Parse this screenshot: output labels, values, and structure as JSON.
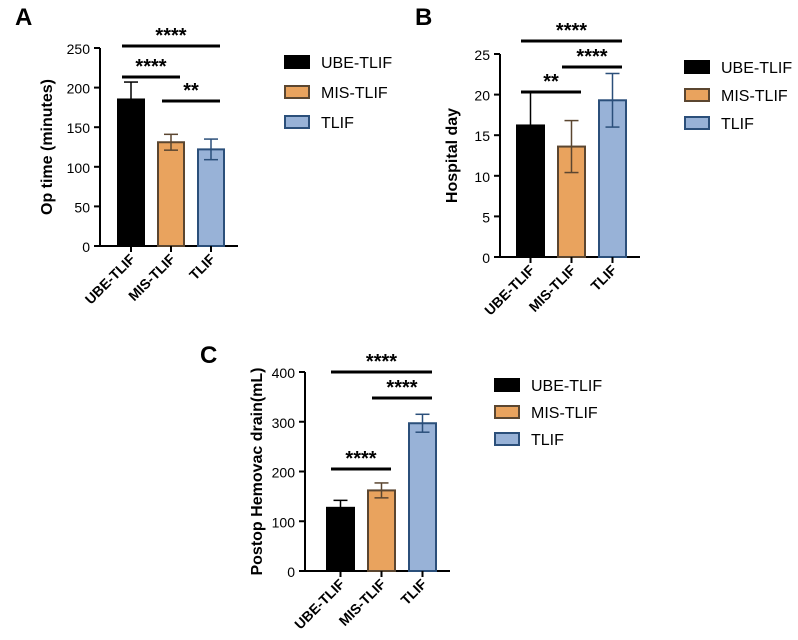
{
  "legend_labels": [
    "UBE-TLIF",
    "MIS-TLIF",
    "TLIF"
  ],
  "colors": {
    "UBE-TLIF": {
      "fill": "#000000",
      "stroke": "#000000"
    },
    "MIS-TLIF": {
      "fill": "#e9a35e",
      "stroke": "#5b4630"
    },
    "TLIF": {
      "fill": "#98b2d7",
      "stroke": "#2b4f7a"
    }
  },
  "chart_data": [
    {
      "panel": "A",
      "type": "bar",
      "categories": [
        "UBE-TLIF",
        "MIS-TLIF",
        "TLIF"
      ],
      "values": [
        185,
        131,
        122
      ],
      "errors": [
        22,
        10,
        13
      ],
      "ylabel": "Op time (minutes)",
      "ylim": [
        0,
        250
      ],
      "yticks": [
        0,
        50,
        100,
        150,
        200,
        250
      ],
      "grid": false,
      "legend": "right",
      "significance": [
        {
          "from": 0,
          "to": 2,
          "label": "****"
        },
        {
          "from": 0,
          "to": 1,
          "label": "****"
        },
        {
          "from": 1,
          "to": 2,
          "label": "**"
        }
      ]
    },
    {
      "panel": "B",
      "type": "bar",
      "categories": [
        "UBE-TLIF",
        "MIS-TLIF",
        "TLIF"
      ],
      "values": [
        16.2,
        13.6,
        19.3
      ],
      "errors": [
        4.1,
        3.2,
        3.3
      ],
      "ylabel": "Hospital day",
      "ylim": [
        0,
        25
      ],
      "yticks": [
        0,
        5,
        10,
        15,
        20,
        25
      ],
      "grid": false,
      "legend": "right",
      "significance": [
        {
          "from": 0,
          "to": 2,
          "label": "****"
        },
        {
          "from": 1,
          "to": 2,
          "label": "****"
        },
        {
          "from": 0,
          "to": 1,
          "label": "**"
        }
      ]
    },
    {
      "panel": "C",
      "type": "bar",
      "categories": [
        "UBE-TLIF",
        "MIS-TLIF",
        "TLIF"
      ],
      "values": [
        127,
        162,
        297
      ],
      "errors": [
        15,
        15,
        18
      ],
      "ylabel": "Postop Hemovac drain(mL)",
      "ylim": [
        0,
        400
      ],
      "yticks": [
        0,
        100,
        200,
        300,
        400
      ],
      "grid": false,
      "legend": "right",
      "significance": [
        {
          "from": 0,
          "to": 2,
          "label": "****"
        },
        {
          "from": 1,
          "to": 2,
          "label": "****"
        },
        {
          "from": 0,
          "to": 1,
          "label": "****"
        }
      ]
    }
  ]
}
